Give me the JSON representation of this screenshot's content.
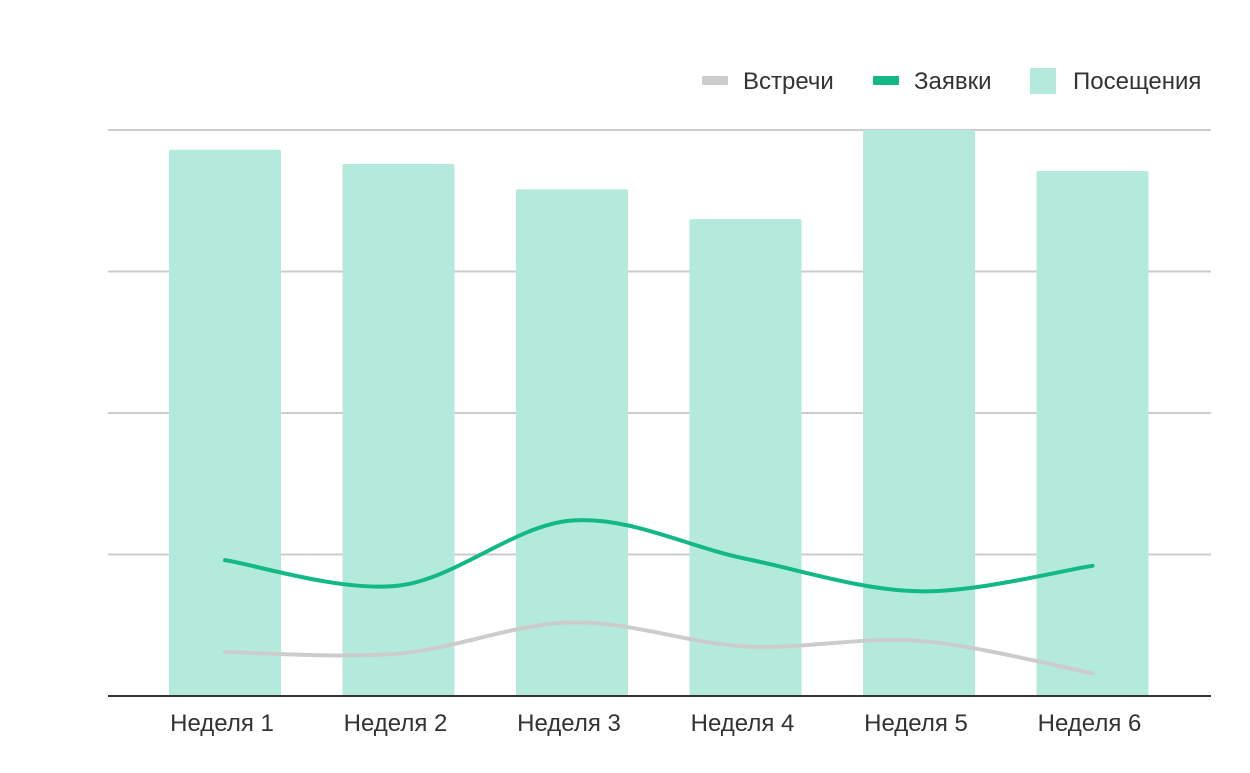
{
  "chart_data": {
    "type": "bar",
    "categories": [
      "Неделя 1",
      "Неделя 2",
      "Неделя 3",
      "Неделя 4",
      "Неделя 5",
      "Неделя 6"
    ],
    "ylim": [
      0,
      4
    ],
    "grid": true,
    "legend_position": "top-right",
    "series": [
      {
        "name": "Посещения",
        "type": "bar",
        "color": "#b4eadc",
        "values": [
          3.86,
          3.76,
          3.58,
          3.37,
          4.0,
          3.71
        ]
      },
      {
        "name": "Заявки",
        "type": "line",
        "color": "#12b886",
        "values": [
          0.96,
          0.78,
          1.24,
          0.97,
          0.74,
          0.92
        ]
      },
      {
        "name": "Встречи",
        "type": "line",
        "color": "#cccccc",
        "values": [
          0.31,
          0.3,
          0.52,
          0.35,
          0.39,
          0.16
        ]
      }
    ],
    "legend": [
      "Встречи",
      "Заявки",
      "Посещения"
    ]
  }
}
